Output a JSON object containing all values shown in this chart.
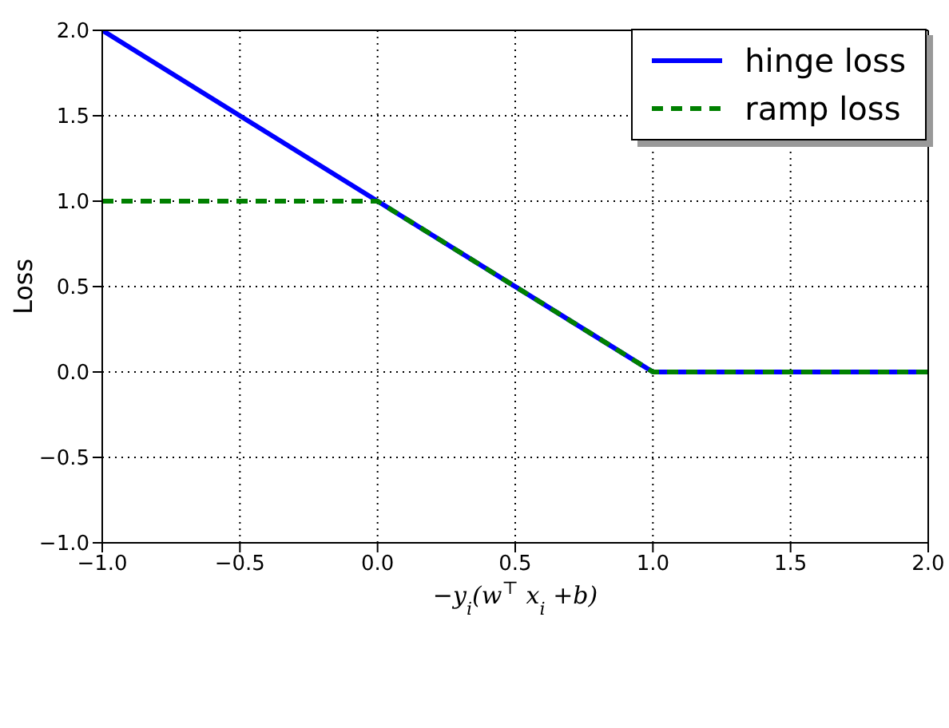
{
  "chart_data": {
    "type": "line",
    "xlabel": "−y$_{i}$(w$^{⊤}$ x$_{i}$ +b)",
    "ylabel": "Loss",
    "x": [
      -1,
      0,
      1,
      2
    ],
    "series": [
      {
        "name": "hinge loss",
        "color": "#0000ff",
        "values": [
          2,
          1,
          0,
          0
        ],
        "line_style": "solid"
      },
      {
        "name": "ramp loss",
        "color": "#008000",
        "values": [
          1,
          1,
          0,
          0
        ],
        "line_style": "dashed"
      }
    ],
    "xlim": [
      -1,
      2
    ],
    "ylim": [
      -1,
      2
    ],
    "xticks": [
      {
        "value": -1,
        "label": "−1.0"
      },
      {
        "value": -0.5,
        "label": "−0.5"
      },
      {
        "value": 0,
        "label": "0.0"
      },
      {
        "value": 0.5,
        "label": "0.5"
      },
      {
        "value": 1,
        "label": "1.0"
      },
      {
        "value": 1.5,
        "label": "1.5"
      },
      {
        "value": 2,
        "label": "2.0"
      }
    ],
    "yticks": [
      {
        "value": -1,
        "label": "−1.0"
      },
      {
        "value": -0.5,
        "label": "−0.5"
      },
      {
        "value": 0,
        "label": "0.0"
      },
      {
        "value": 0.5,
        "label": "0.5"
      },
      {
        "value": 1,
        "label": "1.0"
      },
      {
        "value": 1.5,
        "label": "1.5"
      },
      {
        "value": 2,
        "label": "2.0"
      }
    ],
    "grid": true,
    "legend": "top right",
    "marker": "none"
  }
}
